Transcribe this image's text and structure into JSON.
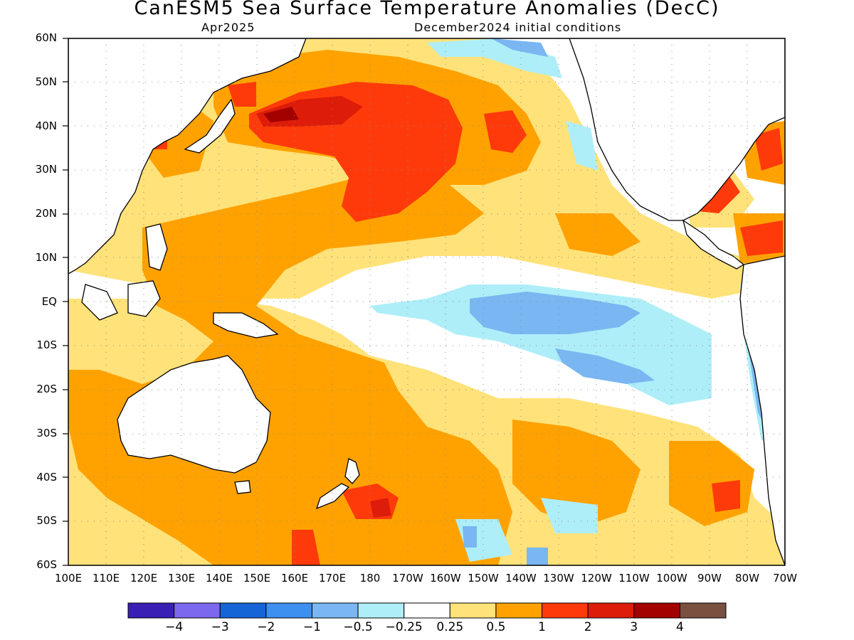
{
  "header": {
    "title": "CanESM5 Sea Surface Temperature Anomalies (DecC)",
    "subtitle_left": "Apr2025",
    "subtitle_right": "December2024 initial conditions"
  },
  "axes": {
    "lat_labels": [
      "60N",
      "50N",
      "40N",
      "30N",
      "20N",
      "10N",
      "EQ",
      "10S",
      "20S",
      "30S",
      "40S",
      "50S",
      "60S"
    ],
    "lon_labels": [
      "100E",
      "110E",
      "120E",
      "130E",
      "140E",
      "150E",
      "160E",
      "170E",
      "180",
      "170W",
      "160W",
      "150W",
      "140W",
      "130W",
      "120W",
      "110W",
      "100W",
      "90W",
      "80W",
      "70W"
    ]
  },
  "colorbar": {
    "colors": [
      "#3a1fb5",
      "#7b68ee",
      "#1565d6",
      "#3d8ff0",
      "#79b6f2",
      "#aeeef8",
      "#ffffff",
      "#ffe27a",
      "#ffa200",
      "#ff3a0a",
      "#dd1c0a",
      "#a30000",
      "#7a5040"
    ],
    "labels": [
      "−4",
      "−3",
      "−2",
      "−1",
      "−0.5",
      "−0.25",
      "0.25",
      "0.5",
      "1",
      "2",
      "3",
      "4"
    ]
  },
  "map": {
    "domain": {
      "lon_min": 100,
      "lon_max": 290,
      "lat_min": -60,
      "lat_max": 60
    }
  }
}
